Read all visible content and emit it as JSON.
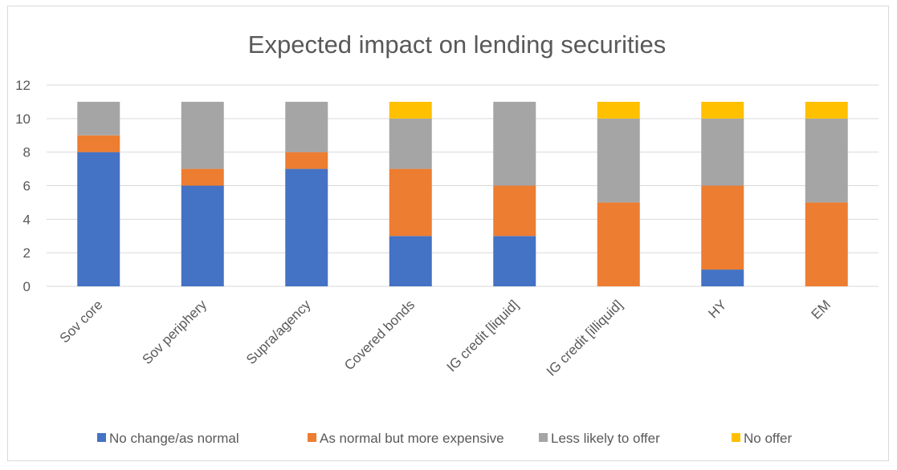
{
  "chart_data": {
    "type": "bar",
    "stacked": true,
    "title": "Expected impact on lending securities",
    "xlabel": "",
    "ylabel": "",
    "ylim": [
      0,
      12
    ],
    "yticks": [
      0,
      2,
      4,
      6,
      8,
      10,
      12
    ],
    "grid": true,
    "legend_position": "bottom",
    "categories": [
      "Sov core",
      "Sov periphery",
      "Supra/agency",
      "Covered bonds",
      "IG credit [liquid]",
      "IG credit [illiquid]",
      "HY",
      "EM"
    ],
    "series": [
      {
        "name": "No change/as normal",
        "color": "#4472c4",
        "values": [
          8,
          6,
          7,
          3,
          3,
          0,
          1,
          0
        ]
      },
      {
        "name": "As normal but more expensive",
        "color": "#ed7d31",
        "values": [
          1,
          1,
          1,
          4,
          3,
          5,
          5,
          5
        ]
      },
      {
        "name": "Less likely to offer",
        "color": "#a5a5a5",
        "values": [
          2,
          4,
          3,
          3,
          5,
          5,
          4,
          5
        ]
      },
      {
        "name": "No offer",
        "color": "#ffc000",
        "values": [
          0,
          0,
          0,
          1,
          0,
          1,
          1,
          1
        ]
      }
    ]
  }
}
